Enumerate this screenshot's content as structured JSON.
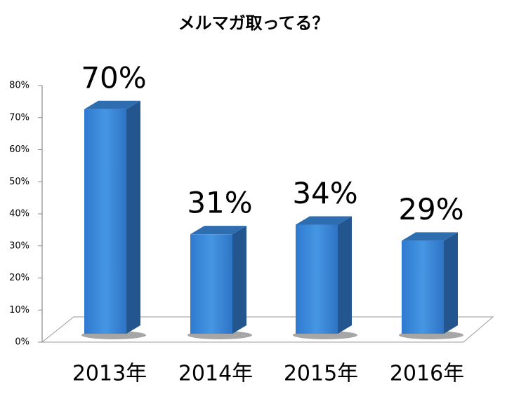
{
  "chart_data": {
    "type": "bar3d",
    "title": "メルマガ取ってる？",
    "categories": [
      "2013年",
      "2014年",
      "2015年",
      "2016年"
    ],
    "values": [
      70,
      31,
      34,
      29
    ],
    "value_labels": [
      "70%",
      "31%",
      "34%",
      "29%"
    ],
    "color": "#3a8ad8",
    "ylim": [
      0,
      80
    ],
    "yticks": [
      {
        "value": 0,
        "label": "0%"
      },
      {
        "value": 10,
        "label": "10%"
      },
      {
        "value": 20,
        "label": "20%"
      },
      {
        "value": 30,
        "label": "30%"
      },
      {
        "value": 40,
        "label": "40%"
      },
      {
        "value": 50,
        "label": "50%"
      },
      {
        "value": 60,
        "label": "60%"
      },
      {
        "value": 70,
        "label": "70%"
      },
      {
        "value": 80,
        "label": "80%"
      }
    ]
  }
}
